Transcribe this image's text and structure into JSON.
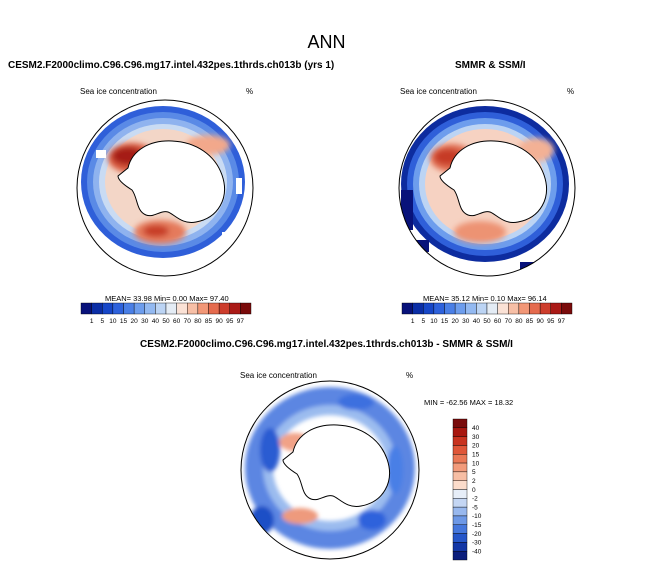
{
  "page": {
    "title": "ANN",
    "model_title": "CESM2.F2000climo.C96.C96.mg17.intel.432pes.1thrds.ch013b (yrs 1)",
    "obs_title": "SMMR & SSM/I",
    "diff_title": "CESM2.F2000climo.C96.C96.mg17.intel.432pes.1thrds.ch013b - SMMR & SSM/I"
  },
  "panels": {
    "model": {
      "variable": "Sea ice concentration",
      "units": "%",
      "stats": "MEAN= 33.98  Min= 0.00  Max= 97.40"
    },
    "obs": {
      "variable": "Sea ice concentration",
      "units": "%",
      "stats": "MEAN= 35.12  Min= 0.10  Max= 96.14"
    },
    "diff": {
      "variable": "Sea ice concentration",
      "units": "%",
      "stats": "MIN = -62.56 MAX = 18.32"
    }
  },
  "colorbars": {
    "absolute": {
      "labels": [
        "1",
        "5",
        "10",
        "15",
        "20",
        "30",
        "40",
        "50",
        "60",
        "70",
        "80",
        "85",
        "90",
        "95",
        "97"
      ],
      "colors": [
        "#08127a",
        "#0b2ea6",
        "#1747c8",
        "#2e62dc",
        "#4a7fe6",
        "#6d9ded",
        "#93b9f1",
        "#bcd4f4",
        "#e4ecf5",
        "#fbe2d6",
        "#f7bfa6",
        "#f29777",
        "#e56b4e",
        "#cd3d2c",
        "#aa1a16",
        "#7a0b0b"
      ]
    },
    "difference": {
      "labels": [
        "40",
        "30",
        "20",
        "15",
        "10",
        "5",
        "2",
        "0",
        "-2",
        "-5",
        "-10",
        "-15",
        "-20",
        "-30",
        "-40"
      ],
      "colors": [
        "#7a0b0b",
        "#a8170f",
        "#c8331f",
        "#df5638",
        "#ea7856",
        "#f29b7b",
        "#f7bea4",
        "#fbdccb",
        "#e7eef8",
        "#c4d6f3",
        "#98b8ee",
        "#6d98e6",
        "#4577dc",
        "#2556c9",
        "#1236a6",
        "#0a1d7c"
      ]
    }
  }
}
